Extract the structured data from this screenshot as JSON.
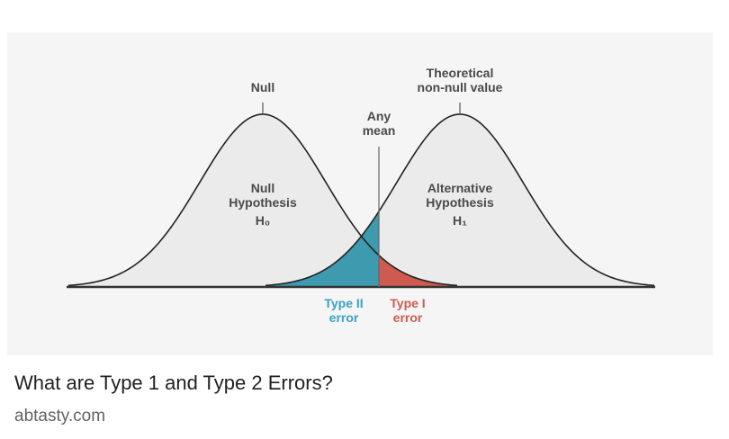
{
  "result": {
    "title": "What are Type 1 and Type 2 Errors?",
    "source": "abtasty.com"
  },
  "diagram": {
    "null_label": "Null",
    "theoretical_line1": "Theoretical",
    "theoretical_line2": "non-null value",
    "any_mean_line1": "Any",
    "any_mean_line2": "mean",
    "null_hyp_line1": "Null",
    "null_hyp_line2": "Hypothesis",
    "null_hyp_symbol": "H₀",
    "alt_hyp_line1": "Alternative",
    "alt_hyp_line2": "Hypothesis",
    "alt_hyp_symbol": "H₁",
    "type2_line1": "Type II",
    "type2_line2": "error",
    "type1_line1": "Type I",
    "type1_line2": "error",
    "colors": {
      "curve_fill": "#ebebeb",
      "type2_fill": "#3e9aae",
      "type1_fill": "#cf5a4f",
      "type2_text": "#3aa1c0",
      "type1_text": "#cf5a4f"
    }
  }
}
